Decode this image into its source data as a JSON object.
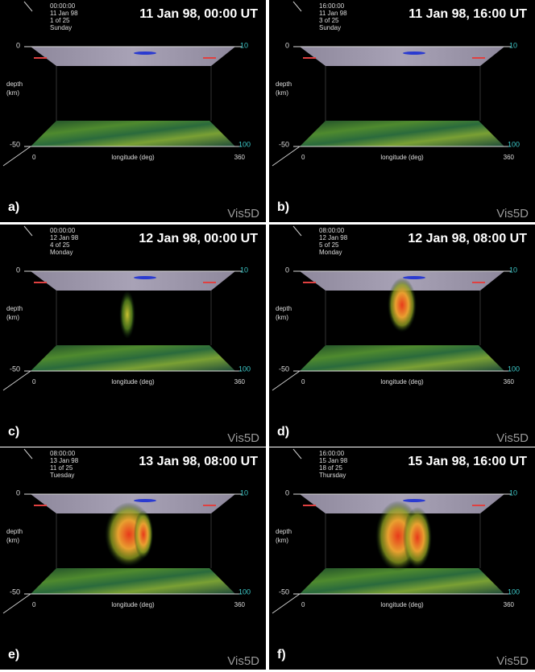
{
  "panels": [
    {
      "label": "a)",
      "title": "11 Jan 98, 00:00 UT",
      "stamp": [
        "00:00:00",
        "11 Jan 98",
        "1 of 25",
        "Sunday"
      ],
      "top_left": "0",
      "top_right": "10",
      "depth_label": [
        "depth",
        "(km)"
      ],
      "bottom_left": "-50",
      "bottom_right": "100",
      "x_start": "0",
      "x_label": "longitude (deg)",
      "x_end": "360",
      "watermark": "Vis5D"
    },
    {
      "label": "b)",
      "title": "11 Jan 98, 16:00 UT",
      "stamp": [
        "16:00:00",
        "11 Jan 98",
        "3 of 25",
        "Sunday"
      ],
      "top_left": "0",
      "top_right": "10",
      "depth_label": [
        "depth",
        "(km)"
      ],
      "bottom_left": "-50",
      "bottom_right": "100",
      "x_start": "0",
      "x_label": "longitude (deg)",
      "x_end": "360",
      "watermark": "Vis5D"
    },
    {
      "label": "c)",
      "title": "12 Jan 98, 00:00 UT",
      "stamp": [
        "00:00:00",
        "12 Jan 98",
        "4 of 25",
        "Monday"
      ],
      "top_left": "0",
      "top_right": "10",
      "depth_label": [
        "depth",
        "(km)"
      ],
      "bottom_left": "-50",
      "bottom_right": "100",
      "x_start": "0",
      "x_label": "longitude (deg)",
      "x_end": "360",
      "watermark": "Vis5D"
    },
    {
      "label": "d)",
      "title": "12 Jan 98, 08:00 UT",
      "stamp": [
        "08:00:00",
        "12 Jan 98",
        "5 of 25",
        "Monday"
      ],
      "top_left": "0",
      "top_right": "10",
      "depth_label": [
        "depth",
        "(km)"
      ],
      "bottom_left": "-50",
      "bottom_right": "100",
      "x_start": "0",
      "x_label": "longitude (deg)",
      "x_end": "360",
      "watermark": "Vis5D"
    },
    {
      "label": "e)",
      "title": "13 Jan 98, 08:00 UT",
      "stamp": [
        "08:00:00",
        "13 Jan 98",
        "11 of 25",
        "Tuesday"
      ],
      "top_left": "0",
      "top_right": "10",
      "depth_label": [
        "depth",
        "(km)"
      ],
      "bottom_left": "-50",
      "bottom_right": "100",
      "x_start": "0",
      "x_label": "longitude (deg)",
      "x_end": "360",
      "watermark": "Vis5D"
    },
    {
      "label": "f)",
      "title": "15 Jan 98, 16:00 UT",
      "stamp": [
        "16:00:00",
        "15 Jan 98",
        "18 of 25",
        "Thursday"
      ],
      "top_left": "0",
      "top_right": "10",
      "depth_label": [
        "depth",
        "(km)"
      ],
      "bottom_left": "-50",
      "bottom_right": "100",
      "x_start": "0",
      "x_label": "longitude (deg)",
      "x_end": "360",
      "watermark": "Vis5D"
    }
  ]
}
